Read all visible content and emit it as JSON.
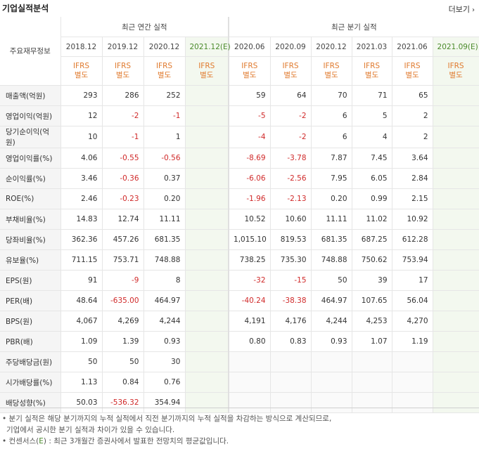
{
  "title": "기업실적분석",
  "more_label": "더보기",
  "header": {
    "group_annual": "최근 연간 실적",
    "group_quarter": "최근 분기 실적",
    "corner": "주요재무정보",
    "periods": [
      "2018.12",
      "2019.12",
      "2020.12",
      "2021.12(E)",
      "2020.06",
      "2020.09",
      "2020.12",
      "2021.03",
      "2021.06",
      "2021.09(E)"
    ],
    "ifrs_line1": "IFRS",
    "ifrs_line2": "별도"
  },
  "rows": [
    {
      "label": "매출액(억원)",
      "values": [
        "293",
        "286",
        "252",
        "",
        "59",
        "64",
        "70",
        "71",
        "65",
        ""
      ]
    },
    {
      "label": "영업이익(억원)",
      "values": [
        "12",
        "-2",
        "-1",
        "",
        "-5",
        "-2",
        "6",
        "5",
        "2",
        ""
      ]
    },
    {
      "label": "당기순이익(억원)",
      "values": [
        "10",
        "-1",
        "1",
        "",
        "-4",
        "-2",
        "6",
        "4",
        "2",
        ""
      ]
    },
    {
      "label": "영업이익률(%)",
      "values": [
        "4.06",
        "-0.55",
        "-0.56",
        "",
        "-8.69",
        "-3.78",
        "7.87",
        "7.45",
        "3.64",
        ""
      ]
    },
    {
      "label": "순이익률(%)",
      "values": [
        "3.46",
        "-0.36",
        "0.37",
        "",
        "-6.06",
        "-2.56",
        "7.95",
        "6.05",
        "2.84",
        ""
      ]
    },
    {
      "label": "ROE(%)",
      "values": [
        "2.46",
        "-0.23",
        "0.20",
        "",
        "-1.96",
        "-2.13",
        "0.20",
        "0.99",
        "2.15",
        ""
      ]
    },
    {
      "label": "부채비율(%)",
      "values": [
        "14.83",
        "12.74",
        "11.11",
        "",
        "10.52",
        "10.60",
        "11.11",
        "11.02",
        "10.92",
        ""
      ]
    },
    {
      "label": "당좌비율(%)",
      "values": [
        "362.36",
        "457.26",
        "681.35",
        "",
        "1,015.10",
        "819.53",
        "681.35",
        "687.25",
        "612.28",
        ""
      ]
    },
    {
      "label": "유보율(%)",
      "values": [
        "711.15",
        "753.71",
        "748.88",
        "",
        "738.25",
        "735.30",
        "748.88",
        "750.62",
        "753.94",
        ""
      ]
    },
    {
      "label": "EPS(원)",
      "values": [
        "91",
        "-9",
        "8",
        "",
        "-32",
        "-15",
        "50",
        "39",
        "17",
        ""
      ]
    },
    {
      "label": "PER(배)",
      "values": [
        "48.64",
        "-635.00",
        "464.97",
        "",
        "-40.24",
        "-38.38",
        "464.97",
        "107.65",
        "56.04",
        ""
      ]
    },
    {
      "label": "BPS(원)",
      "values": [
        "4,067",
        "4,269",
        "4,244",
        "",
        "4,191",
        "4,176",
        "4,244",
        "4,253",
        "4,270",
        ""
      ]
    },
    {
      "label": "PBR(배)",
      "values": [
        "1.09",
        "1.39",
        "0.93",
        "",
        "0.80",
        "0.83",
        "0.93",
        "1.07",
        "1.19",
        ""
      ]
    },
    {
      "label": "주당배당금(원)",
      "values": [
        "50",
        "50",
        "30",
        "",
        "",
        "",
        "",
        "",
        "",
        ""
      ]
    },
    {
      "label": "시가배당률(%)",
      "values": [
        "1.13",
        "0.84",
        "0.76",
        "",
        "",
        "",
        "",
        "",
        "",
        ""
      ]
    },
    {
      "label": "배당성향(%)",
      "values": [
        "50.03",
        "-536.32",
        "354.94",
        "",
        "",
        "",
        "",
        "",
        "",
        ""
      ]
    }
  ],
  "notes": {
    "line1": "• 분기 실적은 해당 분기까지의 누적 실적에서 직전 분기까지의 누적 실적을 차감하는 방식으로 계산되므로,",
    "line2": "기업에서 공시한 분기 실적과 차이가 있을 수 있습니다.",
    "line3_prefix": "• 컨센서스(",
    "line3_e": "E",
    "line3_suffix": ") : 최근 3개월간 증권사에서 발표한 전망치의 평균값입니다."
  },
  "colors": {
    "negative": "#d02a2a",
    "ifrs": "#e07a2e",
    "estimate": "#4a8a2a",
    "estimate_bg": "#f3f8ef"
  }
}
